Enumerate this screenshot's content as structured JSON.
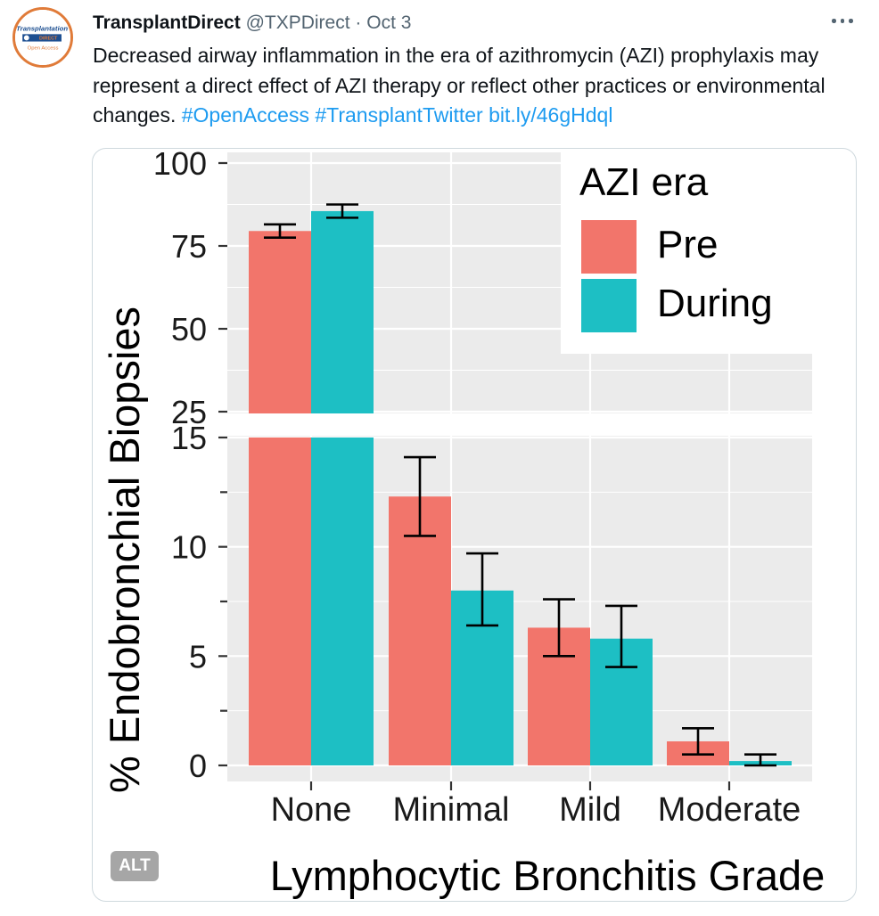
{
  "tweet": {
    "author": "TransplantDirect",
    "handle": "@TXPDirect",
    "separator": "·",
    "time": "Oct 3",
    "text_plain": "Decreased airway inflammation in the era of azithromycin (AZI) prophylaxis may represent a direct effect of AZI therapy or reflect other practices or environmental changes.",
    "hashtags": [
      "#OpenAccess",
      "#TransplantTwitter"
    ],
    "link": "bit.ly/46gHdql",
    "alt_label": "ALT",
    "avatar_text": {
      "line1": "Transplantation",
      "line2": "DIRECT",
      "line3": "Open Access"
    }
  },
  "colors": {
    "pre": "#f2756b",
    "during": "#1dbfc4",
    "panel": "#ebebeb",
    "link": "#1d9bf0"
  },
  "chart_data": {
    "type": "bar",
    "xlabel": "Lymphocytic Bronchitis Grade",
    "ylabel": "% Endobronchial Biopsies",
    "legend_title": "AZI era",
    "legend_position": "top-right",
    "categories": [
      "None",
      "Minimal",
      "Mild",
      "Moderate"
    ],
    "series": [
      {
        "name": "Pre",
        "values": [
          79.5,
          12.3,
          6.3,
          1.1
        ],
        "error_low": [
          77.5,
          10.5,
          5.0,
          0.5
        ],
        "error_high": [
          81.5,
          14.1,
          7.6,
          1.7
        ]
      },
      {
        "name": "During",
        "values": [
          85.5,
          8.0,
          5.8,
          0.2
        ],
        "error_low": [
          83.5,
          6.4,
          4.5,
          0.0
        ],
        "error_high": [
          87.5,
          9.7,
          7.3,
          0.5
        ]
      }
    ],
    "axis_break": true,
    "ylim_lower": [
      0,
      15
    ],
    "ylim_upper": [
      25,
      100
    ],
    "yticks_lower": [
      "0",
      "5",
      "10",
      "15"
    ],
    "yticks_upper": [
      "25",
      "50",
      "75",
      "100"
    ],
    "grid": true
  }
}
